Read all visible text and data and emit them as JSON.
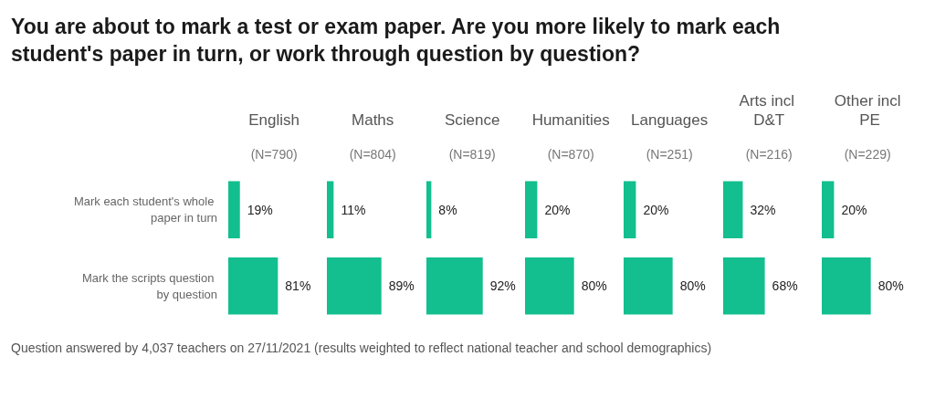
{
  "chart_data": [
    {
      "type": "other",
      "title": "You are about to mark a test or exam paper. Are you more likely to mark each student's paper in turn, or work through question by question?",
      "annotations": [
        "Question answered by 4,037 teachers on 27/11/2021 (results weighted to reflect national teacher and school demographics)"
      ]
    },
    {
      "type": "bar",
      "orientation": "horizontal",
      "title": "English",
      "subtitle": "(N=790)",
      "categories": [
        "Mark each student's whole paper in turn",
        "Mark the scripts question by question"
      ],
      "values": [
        19,
        81
      ],
      "value_labels": [
        "19%",
        "81%"
      ],
      "color": "#13bf8f",
      "tick_labels": "y"
    },
    {
      "type": "bar",
      "orientation": "horizontal",
      "title": "Maths",
      "subtitle": "(N=804)",
      "categories": [
        null,
        null
      ],
      "values": [
        11,
        89
      ],
      "value_labels": [
        "11%",
        "89%"
      ],
      "color": "#13bf8f",
      "tick_labels": false
    },
    {
      "type": "bar",
      "orientation": "horizontal",
      "title": "Science",
      "subtitle": "(N=819)",
      "categories": [
        null,
        null
      ],
      "values": [
        8,
        92
      ],
      "value_labels": [
        "8%",
        "92%"
      ],
      "color": "#13bf8f",
      "tick_labels": false
    },
    {
      "type": "bar",
      "orientation": "horizontal",
      "title": "Humanities",
      "subtitle": "(N=870)",
      "categories": [
        null,
        null
      ],
      "values": [
        20,
        80
      ],
      "value_labels": [
        "20%",
        "80%"
      ],
      "color": "#13bf8f",
      "tick_labels": false
    },
    {
      "type": "bar",
      "orientation": "horizontal",
      "title": "Languages",
      "subtitle": "(N=251)",
      "categories": [
        null,
        null
      ],
      "values": [
        20,
        80
      ],
      "value_labels": [
        "20%",
        "80%"
      ],
      "color": "#13bf8f",
      "tick_labels": false
    },
    {
      "type": "bar",
      "orientation": "horizontal",
      "title": "Arts incl D&T",
      "subtitle": "(N=216)",
      "categories": [
        null,
        null
      ],
      "values": [
        32,
        68
      ],
      "value_labels": [
        "32%",
        "68%"
      ],
      "color": "#13bf8f",
      "tick_labels": false
    },
    {
      "type": "bar",
      "orientation": "horizontal",
      "title": "Other incl PE",
      "subtitle": "(N=229)",
      "categories": [
        null,
        null
      ],
      "values": [
        20,
        80
      ],
      "value_labels": [
        "20%",
        "80%"
      ],
      "color": "#13bf8f",
      "tick_labels": false
    }
  ]
}
